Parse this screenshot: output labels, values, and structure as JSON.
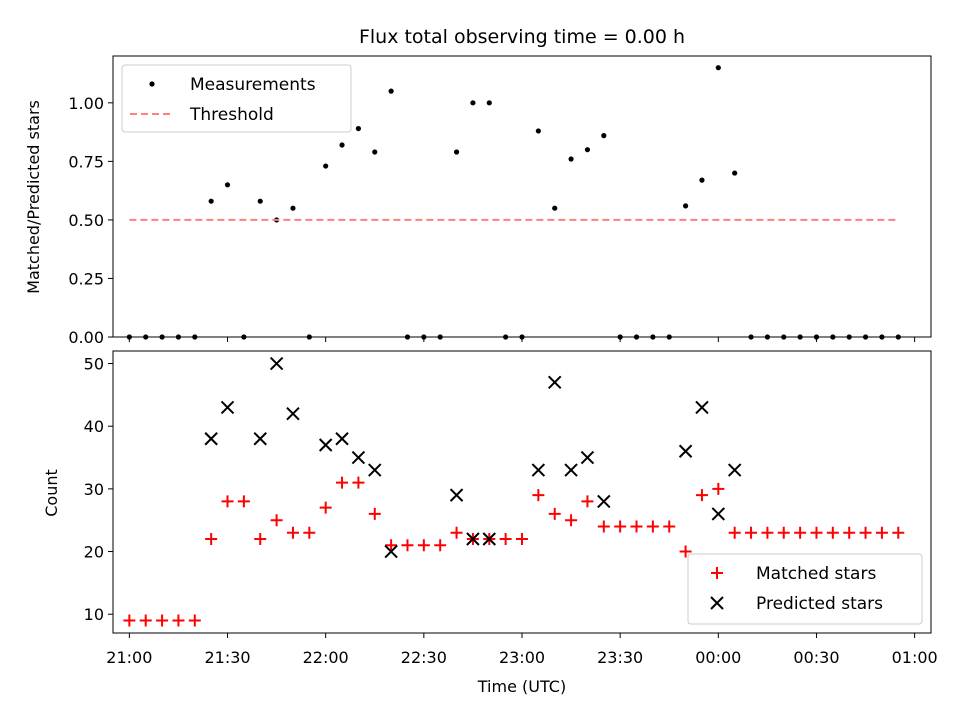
{
  "chart_data": [
    {
      "type": "scatter",
      "title": "Flux total observing time = 0.00 h",
      "xlabel": "",
      "ylabel": "Matched/Predicted stars",
      "ylim": [
        0.0,
        1.2
      ],
      "yticks": [
        "0.00",
        "0.25",
        "0.50",
        "0.75",
        "1.00"
      ],
      "xlim": [
        "20:55",
        "01:05"
      ],
      "grid": false,
      "legend_position": "upper-left",
      "series": [
        {
          "name": "Measurements",
          "marker": "dot",
          "color": "#000000",
          "points": [
            [
              "21:00",
              0.0
            ],
            [
              "21:05",
              0.0
            ],
            [
              "21:10",
              0.0
            ],
            [
              "21:15",
              0.0
            ],
            [
              "21:20",
              0.0
            ],
            [
              "21:25",
              0.58
            ],
            [
              "21:30",
              0.65
            ],
            [
              "21:35",
              0.0
            ],
            [
              "21:40",
              0.58
            ],
            [
              "21:45",
              0.5
            ],
            [
              "21:50",
              0.55
            ],
            [
              "21:55",
              0.0
            ],
            [
              "22:00",
              0.73
            ],
            [
              "22:05",
              0.82
            ],
            [
              "22:10",
              0.89
            ],
            [
              "22:15",
              0.79
            ],
            [
              "22:20",
              1.05
            ],
            [
              "22:25",
              0.0
            ],
            [
              "22:30",
              0.0
            ],
            [
              "22:35",
              0.0
            ],
            [
              "22:40",
              0.79
            ],
            [
              "22:45",
              1.0
            ],
            [
              "22:50",
              1.0
            ],
            [
              "22:55",
              0.0
            ],
            [
              "23:00",
              0.0
            ],
            [
              "23:05",
              0.88
            ],
            [
              "23:10",
              0.55
            ],
            [
              "23:15",
              0.76
            ],
            [
              "23:20",
              0.8
            ],
            [
              "23:25",
              0.86
            ],
            [
              "23:30",
              0.0
            ],
            [
              "23:35",
              0.0
            ],
            [
              "23:40",
              0.0
            ],
            [
              "23:45",
              0.0
            ],
            [
              "23:50",
              0.56
            ],
            [
              "23:55",
              0.67
            ],
            [
              "00:00",
              1.15
            ],
            [
              "00:05",
              0.7
            ],
            [
              "00:10",
              0.0
            ],
            [
              "00:15",
              0.0
            ],
            [
              "00:20",
              0.0
            ],
            [
              "00:25",
              0.0
            ],
            [
              "00:30",
              0.0
            ],
            [
              "00:35",
              0.0
            ],
            [
              "00:40",
              0.0
            ],
            [
              "00:45",
              0.0
            ],
            [
              "00:50",
              0.0
            ],
            [
              "00:55",
              0.0
            ]
          ]
        },
        {
          "name": "Threshold",
          "marker": "dashed-line",
          "color": "#ff7f7f",
          "points": [
            [
              "21:00",
              0.5
            ],
            [
              "00:55",
              0.5
            ]
          ]
        }
      ]
    },
    {
      "type": "scatter",
      "title": "",
      "xlabel": "Time (UTC)",
      "ylabel": "Count",
      "ylim": [
        7,
        52
      ],
      "yticks": [
        "10",
        "20",
        "30",
        "40",
        "50"
      ],
      "xlim": [
        "20:55",
        "01:05"
      ],
      "xticks": [
        "21:00",
        "21:30",
        "22:00",
        "22:30",
        "23:00",
        "23:30",
        "00:00",
        "00:30",
        "01:00"
      ],
      "grid": false,
      "legend_position": "lower-right",
      "series": [
        {
          "name": "Matched stars",
          "marker": "plus",
          "color": "#ff0000",
          "points": [
            [
              "21:00",
              9
            ],
            [
              "21:05",
              9
            ],
            [
              "21:10",
              9
            ],
            [
              "21:15",
              9
            ],
            [
              "21:20",
              9
            ],
            [
              "21:25",
              22
            ],
            [
              "21:30",
              28
            ],
            [
              "21:35",
              28
            ],
            [
              "21:40",
              22
            ],
            [
              "21:45",
              25
            ],
            [
              "21:50",
              23
            ],
            [
              "21:55",
              23
            ],
            [
              "22:00",
              27
            ],
            [
              "22:05",
              31
            ],
            [
              "22:10",
              31
            ],
            [
              "22:15",
              26
            ],
            [
              "22:20",
              21
            ],
            [
              "22:25",
              21
            ],
            [
              "22:30",
              21
            ],
            [
              "22:35",
              21
            ],
            [
              "22:40",
              23
            ],
            [
              "22:45",
              22
            ],
            [
              "22:50",
              22
            ],
            [
              "22:55",
              22
            ],
            [
              "23:00",
              22
            ],
            [
              "23:05",
              29
            ],
            [
              "23:10",
              26
            ],
            [
              "23:15",
              25
            ],
            [
              "23:20",
              28
            ],
            [
              "23:25",
              24
            ],
            [
              "23:30",
              24
            ],
            [
              "23:35",
              24
            ],
            [
              "23:40",
              24
            ],
            [
              "23:45",
              24
            ],
            [
              "23:50",
              20
            ],
            [
              "23:55",
              29
            ],
            [
              "00:00",
              30
            ],
            [
              "00:05",
              23
            ],
            [
              "00:10",
              23
            ],
            [
              "00:15",
              23
            ],
            [
              "00:20",
              23
            ],
            [
              "00:25",
              23
            ],
            [
              "00:30",
              23
            ],
            [
              "00:35",
              23
            ],
            [
              "00:40",
              23
            ],
            [
              "00:45",
              23
            ],
            [
              "00:50",
              23
            ],
            [
              "00:55",
              23
            ]
          ]
        },
        {
          "name": "Predicted stars",
          "marker": "x",
          "color": "#000000",
          "points": [
            [
              "21:25",
              38
            ],
            [
              "21:30",
              43
            ],
            [
              "21:40",
              38
            ],
            [
              "21:45",
              50
            ],
            [
              "21:50",
              42
            ],
            [
              "22:00",
              37
            ],
            [
              "22:05",
              38
            ],
            [
              "22:10",
              35
            ],
            [
              "22:15",
              33
            ],
            [
              "22:20",
              20
            ],
            [
              "22:40",
              29
            ],
            [
              "22:45",
              22
            ],
            [
              "22:50",
              22
            ],
            [
              "23:05",
              33
            ],
            [
              "23:10",
              47
            ],
            [
              "23:15",
              33
            ],
            [
              "23:20",
              35
            ],
            [
              "23:25",
              28
            ],
            [
              "23:50",
              36
            ],
            [
              "23:55",
              43
            ],
            [
              "00:00",
              26
            ],
            [
              "00:05",
              33
            ]
          ]
        }
      ]
    }
  ]
}
